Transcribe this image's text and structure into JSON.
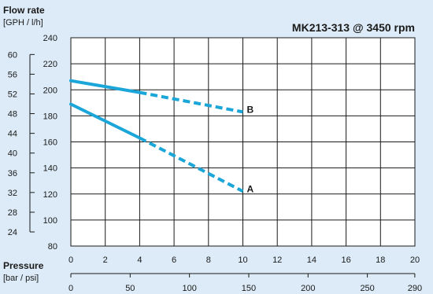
{
  "colors": {
    "background": "#dcebf7",
    "plot_bg": "#ffffff",
    "grid": "#1a1a1a",
    "series": "#1aa6d8"
  },
  "chart_data": {
    "type": "line",
    "title": "MK213-313 @ 3450 rpm",
    "y_label": {
      "title": "Flow rate",
      "units": "[GPH / l/h]"
    },
    "x_label": {
      "title": "Pressure",
      "units": "[bar / psi]"
    },
    "x_bar": {
      "range": [
        0,
        20
      ],
      "ticks": [
        0,
        2,
        4,
        6,
        8,
        10,
        12,
        14,
        16,
        18,
        20
      ]
    },
    "x_psi": {
      "ticks": [
        0,
        50,
        100,
        150,
        200,
        250,
        290
      ]
    },
    "y_lh": {
      "range": [
        80,
        240
      ],
      "ticks": [
        80,
        100,
        120,
        140,
        160,
        180,
        200,
        220,
        240
      ]
    },
    "y_gph": {
      "ticks": [
        24,
        28,
        32,
        36,
        40,
        44,
        48,
        52,
        56,
        60
      ]
    },
    "grid": true,
    "series": [
      {
        "name": "A",
        "solid": [
          [
            0,
            189
          ],
          [
            4,
            163
          ]
        ],
        "dashed": [
          [
            4,
            163
          ],
          [
            10,
            122
          ]
        ]
      },
      {
        "name": "B",
        "solid": [
          [
            0,
            207
          ],
          [
            4,
            198
          ]
        ],
        "dashed": [
          [
            4,
            198
          ],
          [
            10,
            183
          ]
        ]
      }
    ]
  }
}
